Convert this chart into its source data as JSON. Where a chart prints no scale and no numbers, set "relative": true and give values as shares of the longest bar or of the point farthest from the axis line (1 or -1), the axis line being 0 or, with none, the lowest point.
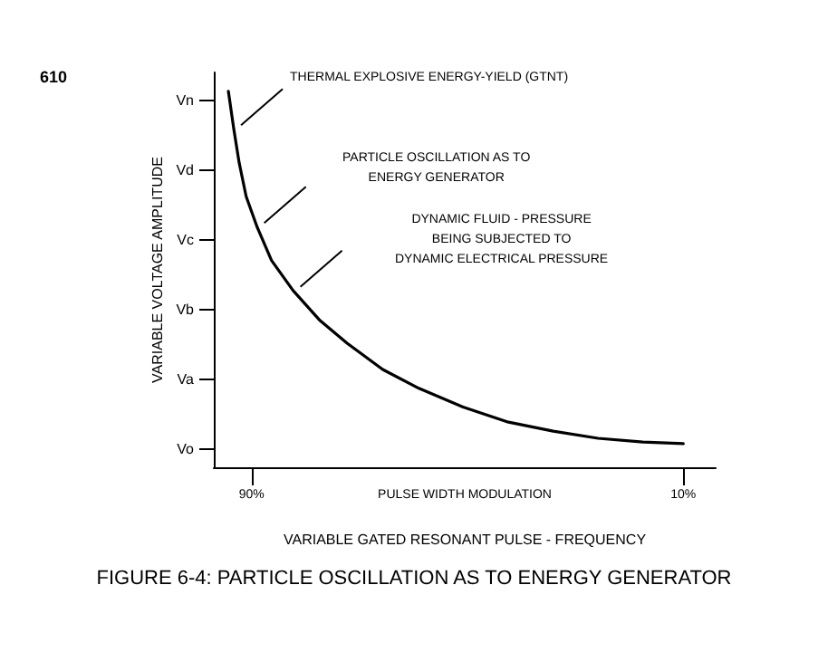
{
  "chart_data": {
    "type": "line",
    "title": "FIGURE 6-4: PARTICLE OSCILLATION AS TO ENERGY GENERATOR",
    "xlabel": "VARIABLE GATED RESONANT PULSE - FREQUENCY",
    "ylabel": "VARIABLE VOLTAGE AMPLITUDE",
    "x": [
      94.3,
      93.3,
      92.3,
      91.0,
      89.0,
      86.3,
      82.3,
      77.3,
      72.3,
      65.7,
      59.0,
      50.8,
      42.4,
      34.1,
      25.8,
      17.5,
      10
    ],
    "values": [
      1,
      0.9,
      0.81,
      0.72,
      0.64,
      0.55,
      0.47,
      0.39,
      0.33,
      0.26,
      0.21,
      0.16,
      0.12,
      0.096,
      0.077,
      0.067,
      0.063
    ],
    "relative": true,
    "color": "#000000",
    "marker": "none",
    "line_style": "solid",
    "xlim": [
      97,
      4
    ],
    "xticks": [
      {
        "value": 90,
        "label": "90%"
      },
      {
        "value": 10,
        "label": "10%"
      }
    ],
    "annotations": [
      "610",
      "PULSE WIDTH MODULATION",
      "THERMAL EXPLOSIVE ENERGY-YIELD (GTNT)",
      "PARTICLE OSCILLATION AS TO\nENERGY GENERATOR",
      "DYNAMIC FLUID - PRESSURE\nBEING SUBJECTED TO\nDYNAMIC ELECTRICAL PRESSURE",
      "Vo",
      "Va",
      "Vb",
      "Vc",
      "Vd",
      "Vn"
    ]
  }
}
